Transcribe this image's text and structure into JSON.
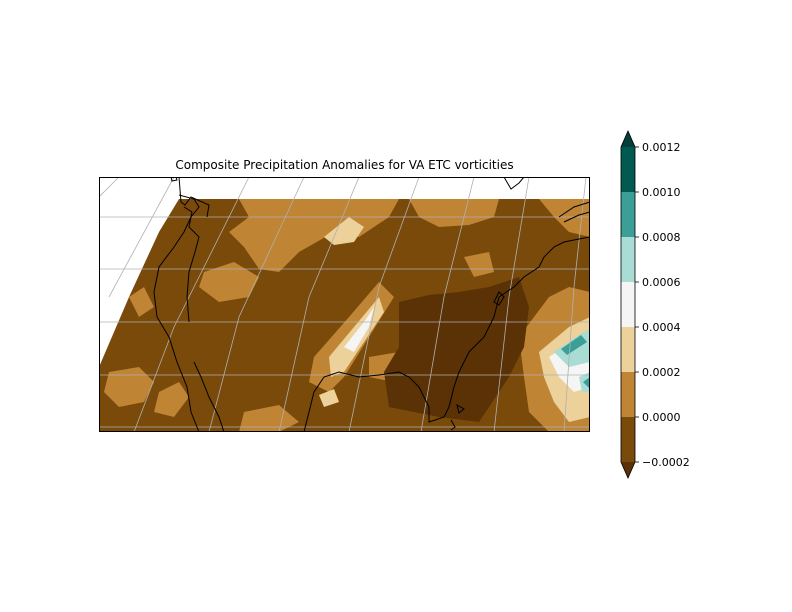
{
  "title": "Composite Precipitation Anomalies for VA ETC vorticities",
  "colors": {
    "bin_m0002_0": "#7a4a0b",
    "bin_0_00002": "#bf8434",
    "bin_00002_00004": "#ecd19a",
    "bin_00004_00006": "#f5f5f5",
    "bin_00006_00008": "#a9dcd4",
    "bin_00008_0001": "#3b9f97",
    "bin_0001_00012": "#005a52",
    "under": "#5a3206",
    "over": "#013f38"
  },
  "colorbar": {
    "levels": [
      "0.0012",
      "0.0010",
      "0.0008",
      "0.0006",
      "0.0004",
      "0.0002",
      "0.0000",
      "−0.0002"
    ],
    "extend": "both"
  },
  "map": {
    "projection": "oblique conic",
    "gridlines": true,
    "coastlines": true
  }
}
